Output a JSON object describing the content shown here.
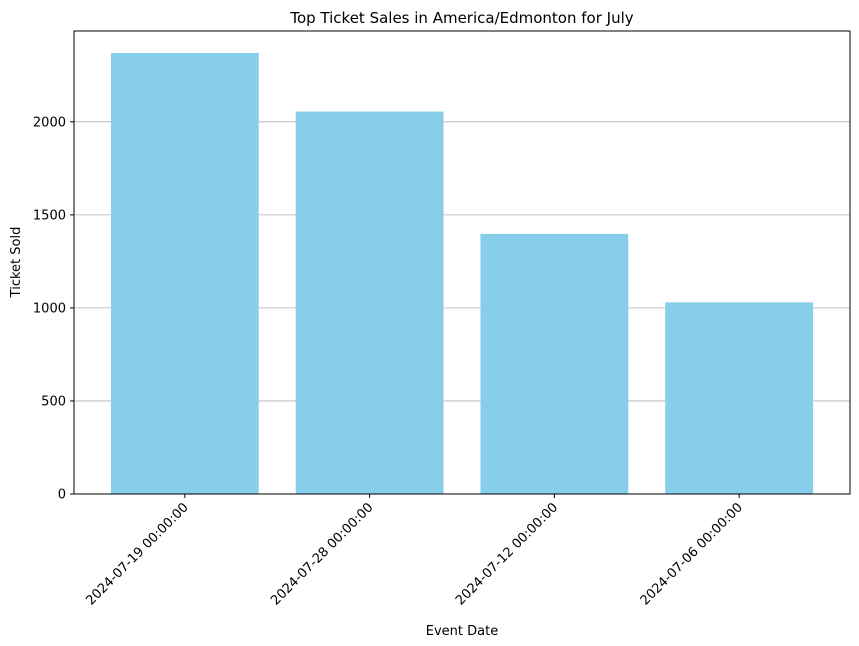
{
  "chart_data": {
    "type": "bar",
    "title": "Top Ticket Sales in America/Edmonton for July",
    "xlabel": "Event Date",
    "ylabel": "Ticket Sold",
    "categories": [
      "2024-07-19 00:00:00",
      "2024-07-28 00:00:00",
      "2024-07-12 00:00:00",
      "2024-07-06 00:00:00"
    ],
    "values": [
      2370,
      2055,
      1398,
      1030
    ],
    "ylim": [
      0,
      2488
    ],
    "yticks": [
      0,
      500,
      1000,
      1500,
      2000
    ],
    "bar_color": "#87ceeb",
    "grid": "y-axis only",
    "legend": "none"
  }
}
